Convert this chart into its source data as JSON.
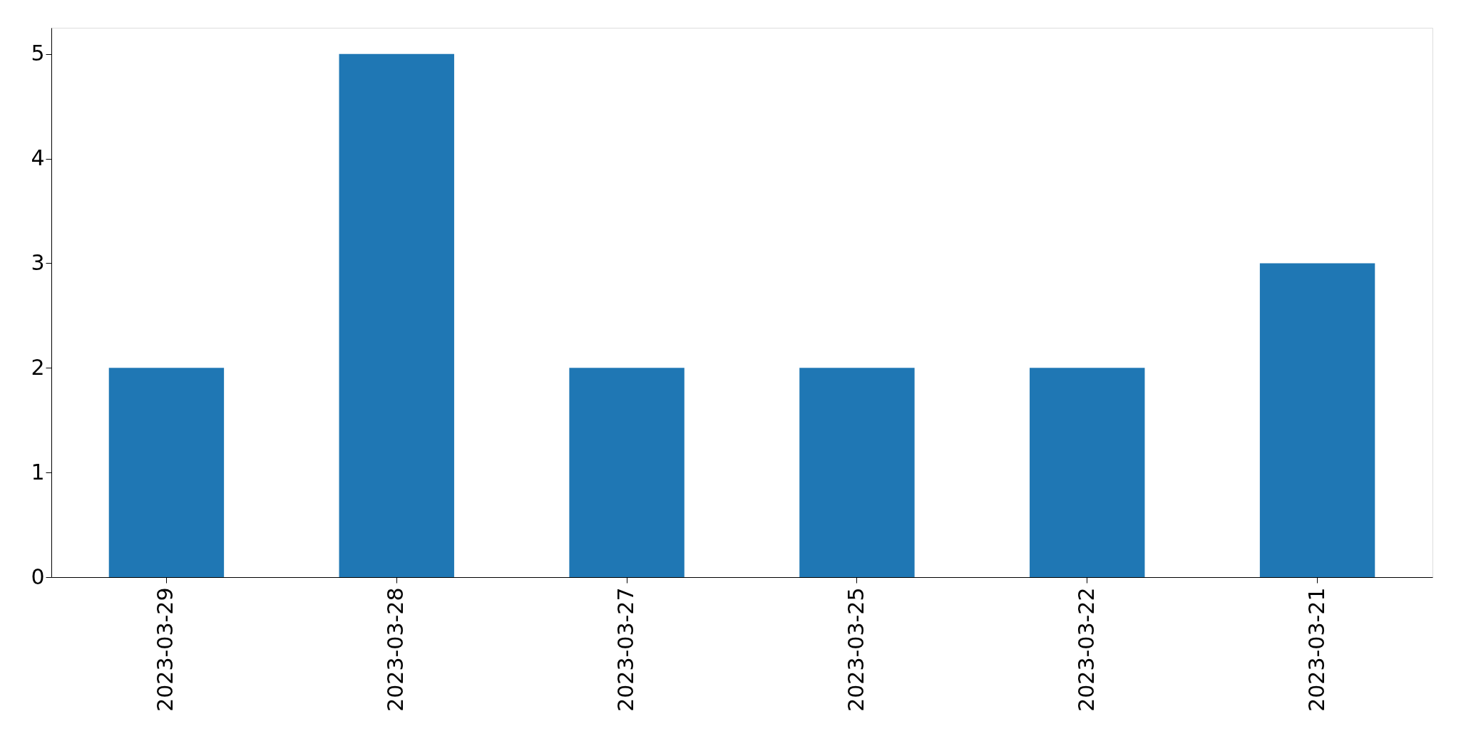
{
  "chart_data": {
    "type": "bar",
    "categories": [
      "2023-03-29",
      "2023-03-28",
      "2023-03-27",
      "2023-03-25",
      "2023-03-22",
      "2023-03-21"
    ],
    "values": [
      2,
      5,
      2,
      2,
      2,
      3
    ],
    "color": "#1f77b4",
    "ylim": [
      0,
      5.25
    ],
    "yticks": [
      0,
      1,
      2,
      3,
      4,
      5
    ],
    "grid": false
  }
}
